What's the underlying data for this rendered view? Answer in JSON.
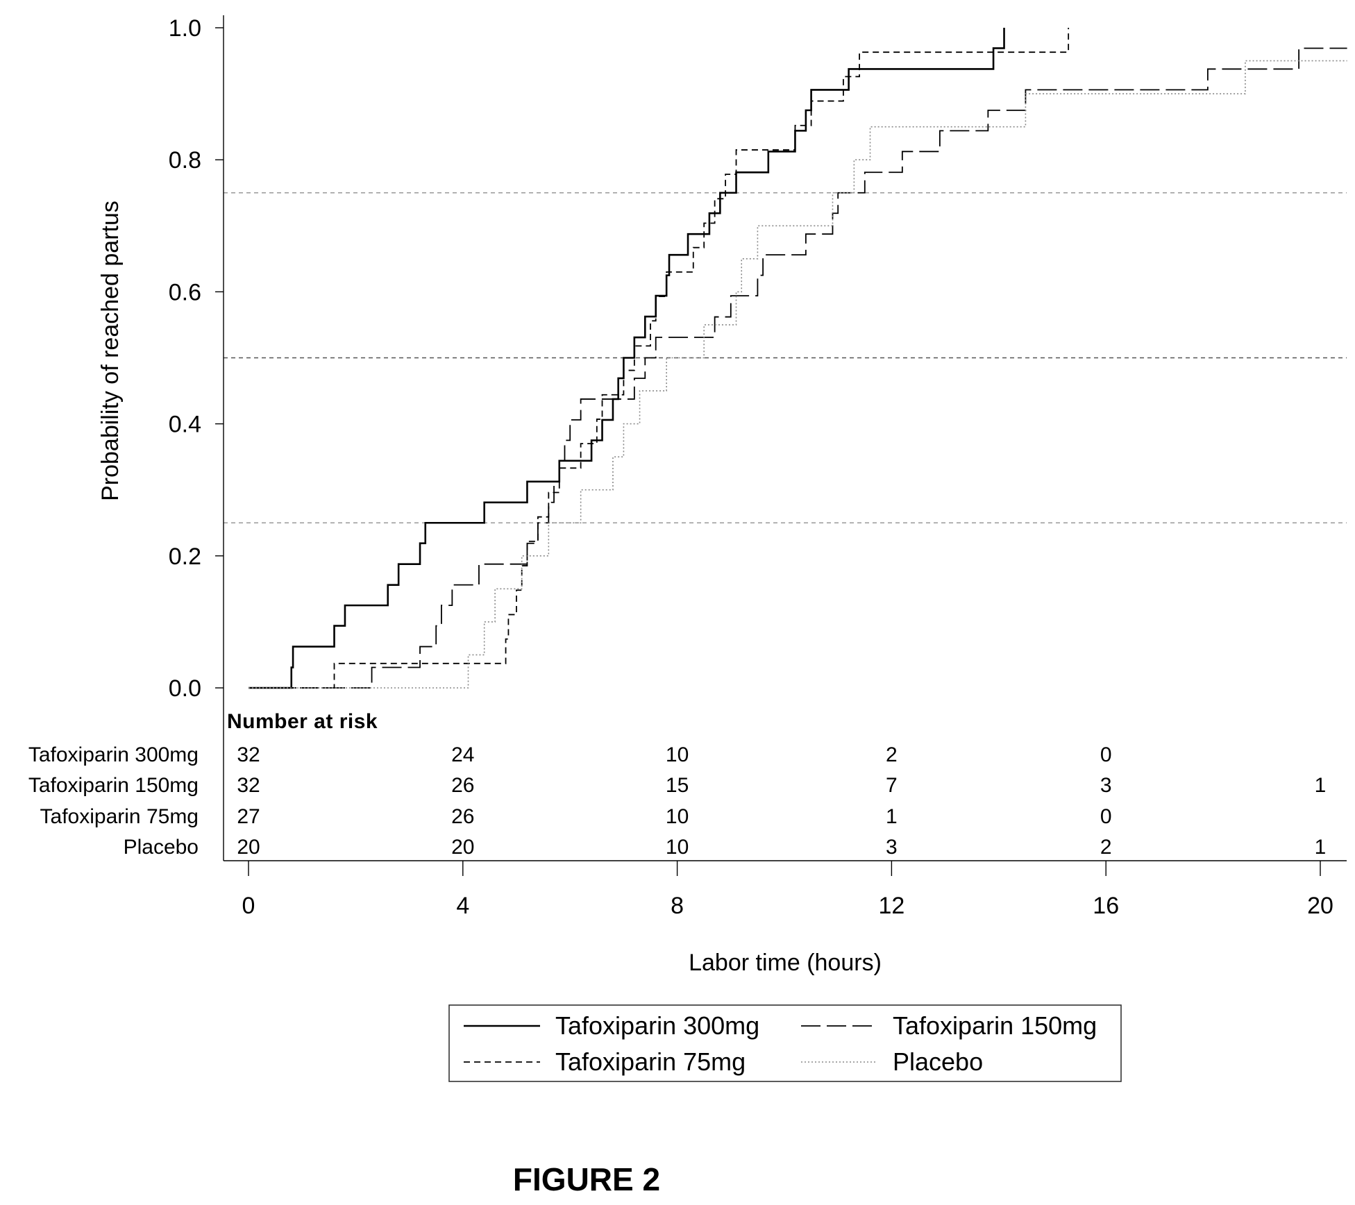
{
  "figure_label": "FIGURE 2",
  "chart_data": {
    "type": "line",
    "subtype": "kaplan-meier step curves",
    "xlabel": "Labor time (hours)",
    "ylabel": "Probability of reached partus",
    "xlim": [
      0,
      20
    ],
    "ylim": [
      0,
      1
    ],
    "x_ticks": [
      "0",
      "4",
      "8",
      "12",
      "16",
      "20"
    ],
    "y_ticks": [
      "0.0",
      "0.2",
      "0.4",
      "0.6",
      "0.8",
      "1.0"
    ],
    "reference_lines": [
      0.25,
      0.5,
      0.75
    ],
    "grid": false,
    "legend_position": "bottom-center",
    "series": [
      {
        "name": "Tafoxiparin 300mg",
        "style": "solid",
        "color": "#000000",
        "points": [
          [
            0,
            0
          ],
          [
            0.8,
            0.031
          ],
          [
            0.83,
            0.0625
          ],
          [
            1.6,
            0.094
          ],
          [
            1.8,
            0.125
          ],
          [
            2.6,
            0.156
          ],
          [
            2.8,
            0.1875
          ],
          [
            3.2,
            0.219
          ],
          [
            3.3,
            0.25
          ],
          [
            4.4,
            0.281
          ],
          [
            5.2,
            0.3125
          ],
          [
            5.8,
            0.344
          ],
          [
            6.4,
            0.375
          ],
          [
            6.6,
            0.406
          ],
          [
            6.8,
            0.4375
          ],
          [
            6.9,
            0.469
          ],
          [
            7.0,
            0.5
          ],
          [
            7.2,
            0.531
          ],
          [
            7.4,
            0.5625
          ],
          [
            7.6,
            0.594
          ],
          [
            7.8,
            0.625
          ],
          [
            7.85,
            0.656
          ],
          [
            8.2,
            0.6875
          ],
          [
            8.6,
            0.719
          ],
          [
            8.8,
            0.75
          ],
          [
            9.1,
            0.781
          ],
          [
            9.7,
            0.8125
          ],
          [
            10.2,
            0.844
          ],
          [
            10.4,
            0.875
          ],
          [
            10.5,
            0.906
          ],
          [
            11.2,
            0.9375
          ],
          [
            13.9,
            0.969
          ],
          [
            14.1,
            1.0
          ]
        ],
        "end_x": 14.1
      },
      {
        "name": "Tafoxiparin 150mg",
        "style": "longdash",
        "color": "#000000",
        "points": [
          [
            0,
            0
          ],
          [
            2.3,
            0.031
          ],
          [
            3.2,
            0.0625
          ],
          [
            3.5,
            0.094
          ],
          [
            3.6,
            0.125
          ],
          [
            3.8,
            0.156
          ],
          [
            4.3,
            0.1875
          ],
          [
            5.2,
            0.219
          ],
          [
            5.4,
            0.25
          ],
          [
            5.6,
            0.281
          ],
          [
            5.7,
            0.3125
          ],
          [
            5.8,
            0.344
          ],
          [
            5.9,
            0.375
          ],
          [
            6.0,
            0.406
          ],
          [
            6.2,
            0.4375
          ],
          [
            7.2,
            0.469
          ],
          [
            7.4,
            0.5
          ],
          [
            7.6,
            0.531
          ],
          [
            8.7,
            0.562
          ],
          [
            9.0,
            0.594
          ],
          [
            9.5,
            0.625
          ],
          [
            9.6,
            0.656
          ],
          [
            10.4,
            0.6875
          ],
          [
            10.9,
            0.719
          ],
          [
            11.0,
            0.75
          ],
          [
            11.5,
            0.781
          ],
          [
            12.2,
            0.8125
          ],
          [
            12.9,
            0.844
          ],
          [
            13.8,
            0.875
          ],
          [
            14.5,
            0.906
          ],
          [
            17.9,
            0.9375
          ],
          [
            19.6,
            0.969
          ]
        ],
        "end_x": 20.5
      },
      {
        "name": "Tafoxiparin 75mg",
        "style": "dash",
        "color": "#000000",
        "points": [
          [
            0,
            0
          ],
          [
            1.6,
            0.037
          ],
          [
            4.8,
            0.074
          ],
          [
            4.85,
            0.111
          ],
          [
            5.0,
            0.148
          ],
          [
            5.1,
            0.185
          ],
          [
            5.2,
            0.222
          ],
          [
            5.4,
            0.259
          ],
          [
            5.6,
            0.296
          ],
          [
            5.8,
            0.333
          ],
          [
            6.2,
            0.37
          ],
          [
            6.5,
            0.407
          ],
          [
            6.6,
            0.444
          ],
          [
            7.0,
            0.481
          ],
          [
            7.2,
            0.518
          ],
          [
            7.5,
            0.556
          ],
          [
            7.6,
            0.593
          ],
          [
            7.8,
            0.63
          ],
          [
            8.3,
            0.667
          ],
          [
            8.5,
            0.704
          ],
          [
            8.7,
            0.741
          ],
          [
            8.9,
            0.778
          ],
          [
            9.1,
            0.815
          ],
          [
            10.2,
            0.852
          ],
          [
            10.5,
            0.889
          ],
          [
            11.1,
            0.926
          ],
          [
            11.4,
            0.963
          ],
          [
            15.3,
            1.0
          ]
        ],
        "end_x": 15.3
      },
      {
        "name": "Placebo",
        "style": "dot",
        "color": "#888888",
        "points": [
          [
            0,
            0
          ],
          [
            4.1,
            0.05
          ],
          [
            4.4,
            0.1
          ],
          [
            4.6,
            0.15
          ],
          [
            5.1,
            0.2
          ],
          [
            5.6,
            0.25
          ],
          [
            6.2,
            0.3
          ],
          [
            6.8,
            0.35
          ],
          [
            7.0,
            0.4
          ],
          [
            7.3,
            0.45
          ],
          [
            7.8,
            0.5
          ],
          [
            8.5,
            0.55
          ],
          [
            9.1,
            0.6
          ],
          [
            9.2,
            0.65
          ],
          [
            9.5,
            0.7
          ],
          [
            10.9,
            0.75
          ],
          [
            11.3,
            0.8
          ],
          [
            11.6,
            0.85
          ],
          [
            14.5,
            0.9
          ],
          [
            18.6,
            0.95
          ]
        ],
        "end_x": 20.5
      }
    ],
    "risk_table": {
      "title": "Number at risk",
      "time_points": [
        0,
        4,
        8,
        12,
        16,
        20
      ],
      "rows": [
        {
          "label": "Tafoxiparin 300mg",
          "counts": [
            "32",
            "24",
            "10",
            "2",
            "0",
            ""
          ]
        },
        {
          "label": "Tafoxiparin 150mg",
          "counts": [
            "32",
            "26",
            "15",
            "7",
            "3",
            "1"
          ]
        },
        {
          "label": "Tafoxiparin 75mg",
          "counts": [
            "27",
            "26",
            "10",
            "1",
            "0",
            ""
          ]
        },
        {
          "label": "Placebo",
          "counts": [
            "20",
            "20",
            "10",
            "3",
            "2",
            "1"
          ]
        }
      ]
    }
  }
}
